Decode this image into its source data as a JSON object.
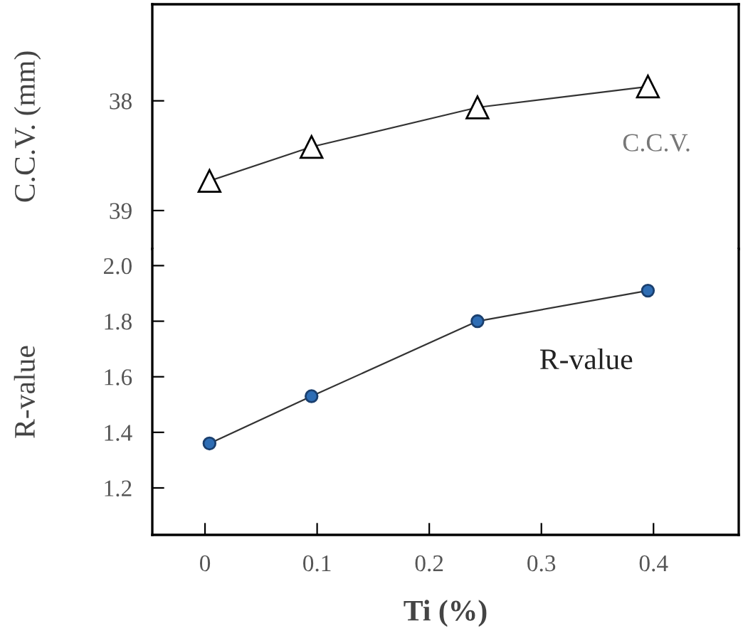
{
  "chart_data": [
    {
      "type": "line",
      "ylabel": "C.C.V. (mm)",
      "x": [
        0.004,
        0.095,
        0.243,
        0.395
      ],
      "xlim": [
        -0.047,
        0.476
      ],
      "xticks": [
        0,
        0.1,
        0.2,
        0.3,
        0.4
      ],
      "ylim": [
        39.35,
        37.12
      ],
      "yticks": [
        39,
        38
      ],
      "tick_labels": "y",
      "marker": "triangle",
      "series": [
        {
          "color": "#000000",
          "values": [
            38.73,
            38.42,
            38.06,
            37.87
          ]
        }
      ],
      "annotations": [
        "C.C.V."
      ]
    },
    {
      "type": "line",
      "ylabel": "R-value",
      "xlabel": "Ti (%)",
      "x": [
        0.004,
        0.095,
        0.243,
        0.395
      ],
      "xlim": [
        -0.047,
        0.476
      ],
      "xticks": [
        0,
        {
          "value": 0.1,
          "label": "0.1"
        },
        0.2,
        0.3,
        0.4
      ],
      "ylim": [
        1.031,
        2.06
      ],
      "yticks": [
        {
          "value": 1.2,
          "label": "1.2"
        },
        {
          "value": 1.4,
          "label": "1.4"
        },
        {
          "value": 1.6,
          "label": "1.6"
        },
        {
          "value": 1.8,
          "label": "1.8"
        },
        {
          "value": 2.0,
          "label": "2.0"
        }
      ],
      "marker": "circle",
      "series": [
        {
          "color": "#2e6db4",
          "values": [
            1.36,
            1.53,
            1.8,
            1.91
          ]
        }
      ],
      "annotations": [
        "R-value"
      ]
    }
  ]
}
